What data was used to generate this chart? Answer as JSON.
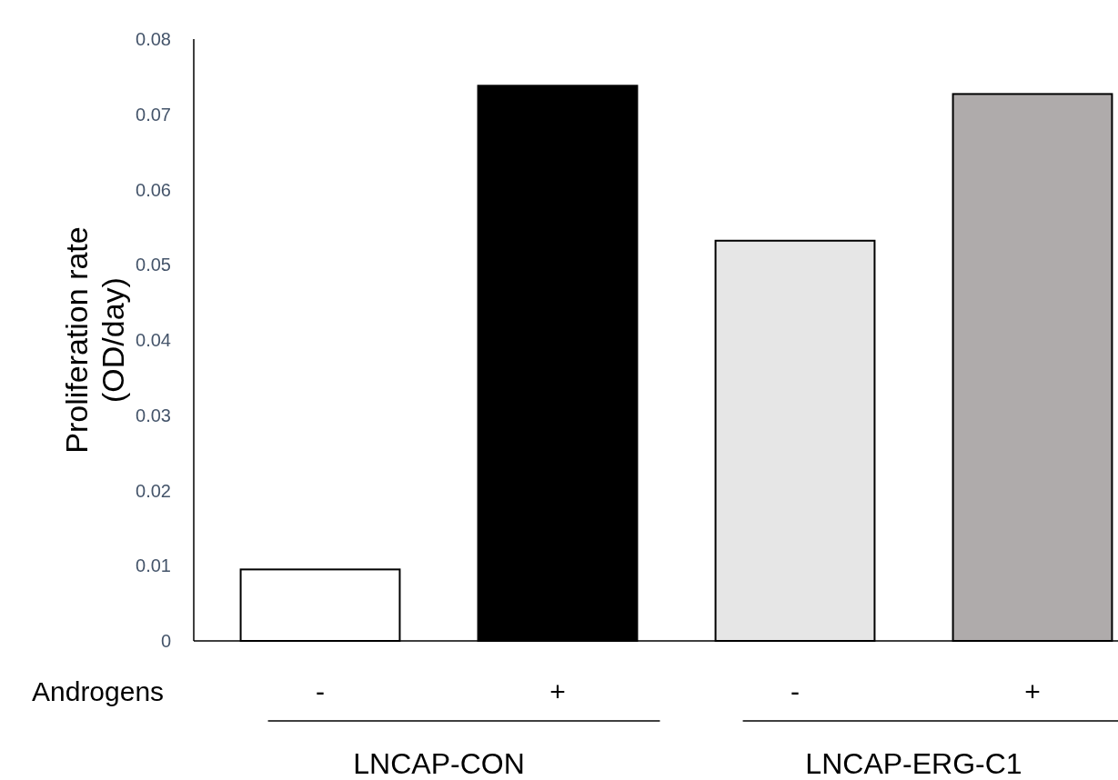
{
  "chart_data": {
    "type": "bar",
    "ylabel": "Proliferation rate\n(OD/day)",
    "categories": [
      "-",
      "+",
      "-",
      "+"
    ],
    "values": [
      0.0095,
      0.0738,
      0.0532,
      0.0727
    ],
    "colors": [
      "#ffffff",
      "#000000",
      "#e6e6e6",
      "#afabab"
    ],
    "ylim": [
      0,
      0.08
    ],
    "yticks": [
      {
        "value": 0,
        "label": "0"
      },
      0.01,
      0.02,
      0.03,
      0.04,
      0.05,
      0.06,
      0.07,
      0.08
    ],
    "grid": false,
    "annotations": [
      "Androgens",
      "LNCAP-CON",
      "LNCAP-ERG-C1"
    ]
  }
}
